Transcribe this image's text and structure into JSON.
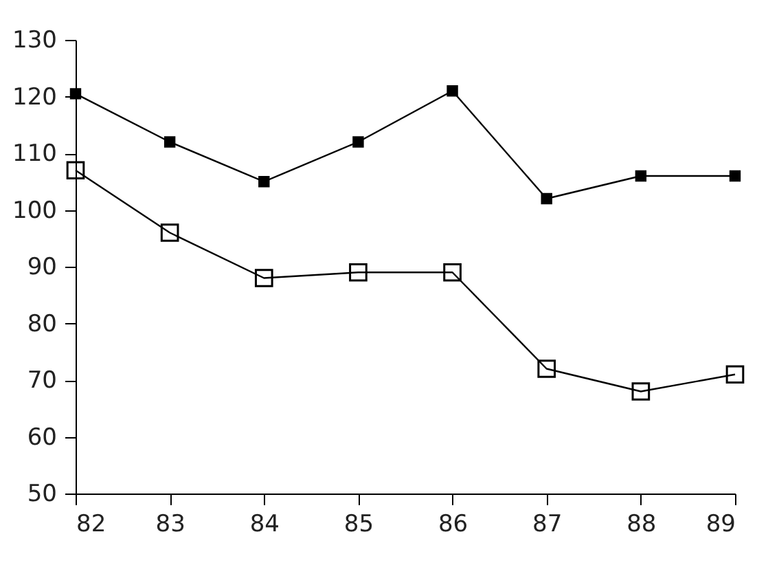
{
  "chart_data": {
    "type": "line",
    "x": [
      82,
      83,
      84,
      85,
      86,
      87,
      88,
      89
    ],
    "xlim": [
      82,
      89
    ],
    "xticks": [
      82,
      83,
      84,
      85,
      86,
      87,
      88,
      89
    ],
    "ylim": [
      50,
      130
    ],
    "yticks": [
      50,
      60,
      70,
      80,
      90,
      100,
      110,
      120,
      130
    ],
    "grid": false,
    "legend": false,
    "marker": "square",
    "line_style": "solid",
    "series": [
      {
        "color": "#000000",
        "values": [
          120.5,
          112,
          105,
          112,
          121,
          102,
          106,
          106
        ]
      },
      {
        "color": "#000000",
        "values": [
          107,
          96,
          88,
          89,
          89,
          72,
          68,
          71
        ]
      }
    ]
  }
}
